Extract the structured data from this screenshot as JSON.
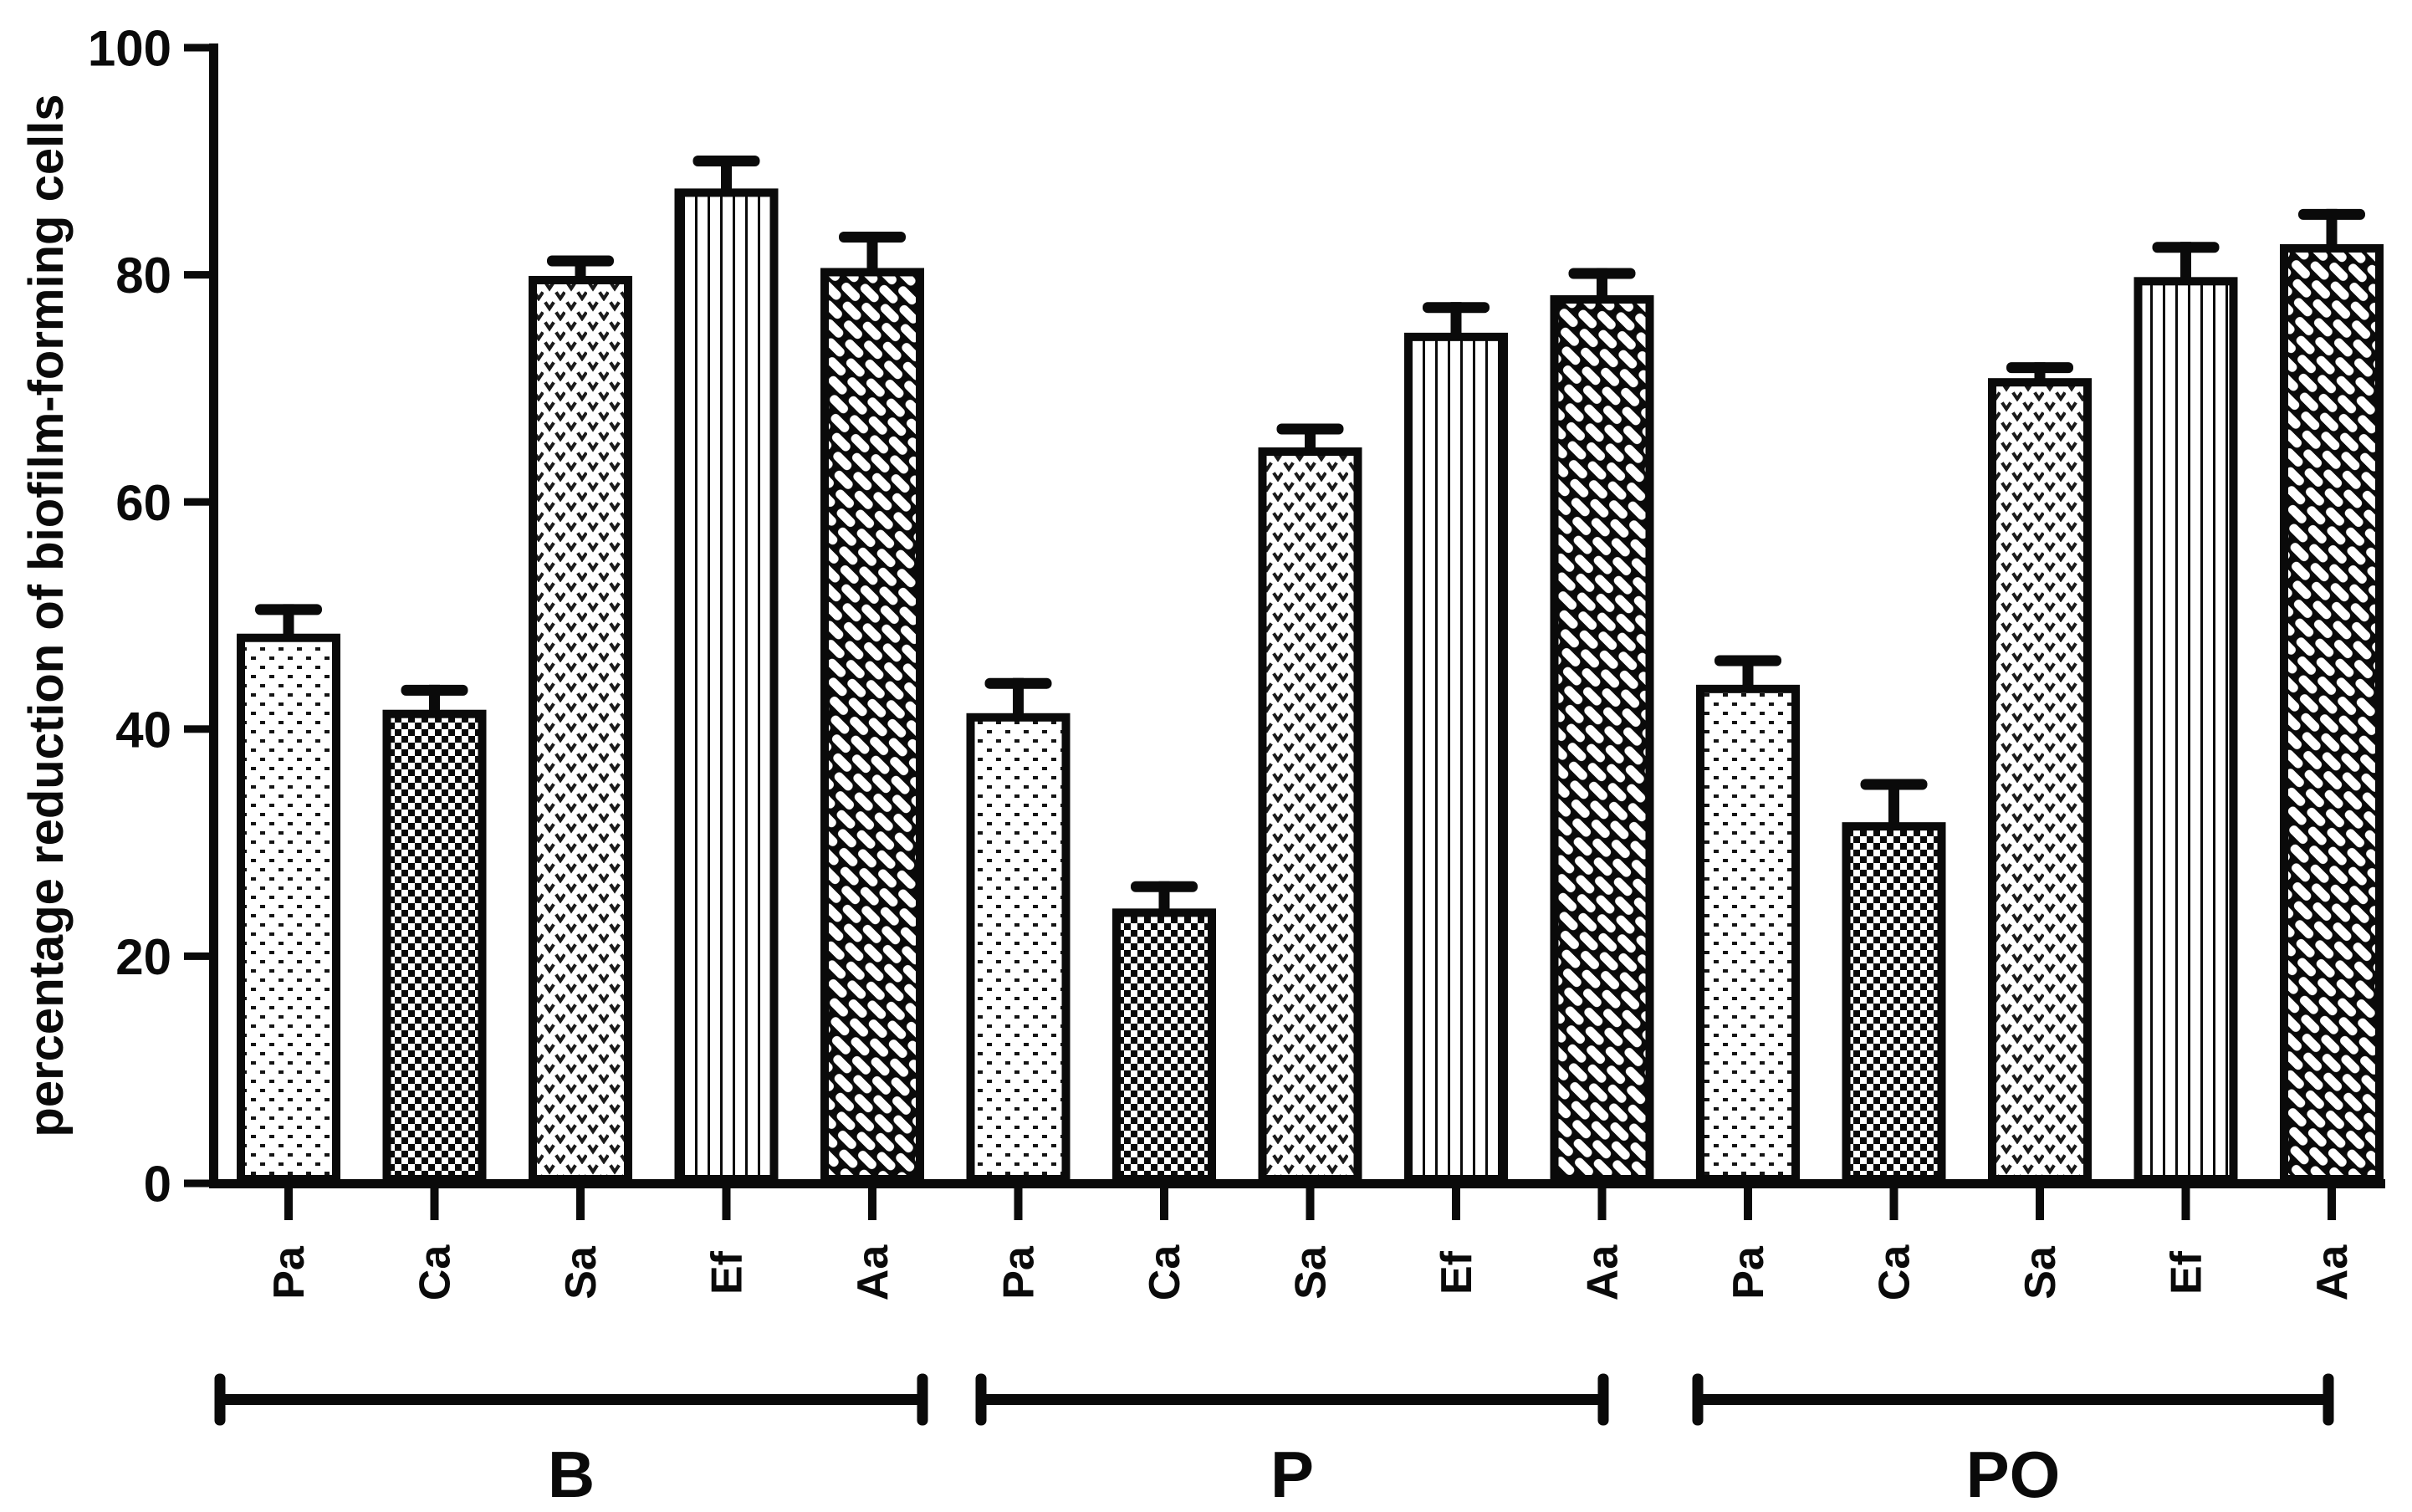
{
  "chart_data": {
    "type": "bar",
    "title": "",
    "ylabel": "percentage reduction of biofilm-forming cells",
    "xlabel": "",
    "ylim": [
      0,
      100
    ],
    "y_ticks": [
      0,
      20,
      40,
      60,
      80,
      100
    ],
    "grid": false,
    "legend": null,
    "bar_labels": [
      "Pa",
      "Ca",
      "Sa",
      "Ef",
      "Aa"
    ],
    "pattern_by_species": {
      "Pa": "sparse-dots",
      "Ca": "checkerboard",
      "Sa": "v-stipple",
      "Ef": "vertical-lines",
      "Aa": "diagonal-bricks"
    },
    "groups": [
      {
        "label": "B",
        "series": [
          {
            "label": "Pa",
            "value": 48.4,
            "error": 2.6,
            "pattern": "sparse-dots"
          },
          {
            "label": "Ca",
            "value": 41.7,
            "error": 2.2,
            "pattern": "checkerboard"
          },
          {
            "label": "Sa",
            "value": 79.9,
            "error": 1.8,
            "pattern": "v-stipple"
          },
          {
            "label": "Ef",
            "value": 87.6,
            "error": 2.9,
            "pattern": "vertical-lines"
          },
          {
            "label": "Aa",
            "value": 80.6,
            "error": 3.2,
            "pattern": "diagonal-bricks"
          }
        ]
      },
      {
        "label": "P",
        "series": [
          {
            "label": "Pa",
            "value": 41.4,
            "error": 3.1,
            "pattern": "sparse-dots"
          },
          {
            "label": "Ca",
            "value": 24.2,
            "error": 2.4,
            "pattern": "checkerboard"
          },
          {
            "label": "Sa",
            "value": 64.8,
            "error": 2.1,
            "pattern": "v-stipple"
          },
          {
            "label": "Ef",
            "value": 74.9,
            "error": 2.7,
            "pattern": "vertical-lines"
          },
          {
            "label": "Aa",
            "value": 78.2,
            "error": 2.4,
            "pattern": "diagonal-bricks"
          }
        ]
      },
      {
        "label": "PO",
        "series": [
          {
            "label": "Pa",
            "value": 43.9,
            "error": 2.6,
            "pattern": "sparse-dots"
          },
          {
            "label": "Ca",
            "value": 31.8,
            "error": 3.8,
            "pattern": "checkerboard"
          },
          {
            "label": "Sa",
            "value": 70.9,
            "error": 1.4,
            "pattern": "v-stipple"
          },
          {
            "label": "Ef",
            "value": 79.8,
            "error": 3.1,
            "pattern": "vertical-lines"
          },
          {
            "label": "Aa",
            "value": 82.7,
            "error": 3.1,
            "pattern": "diagonal-bricks"
          }
        ]
      }
    ]
  }
}
